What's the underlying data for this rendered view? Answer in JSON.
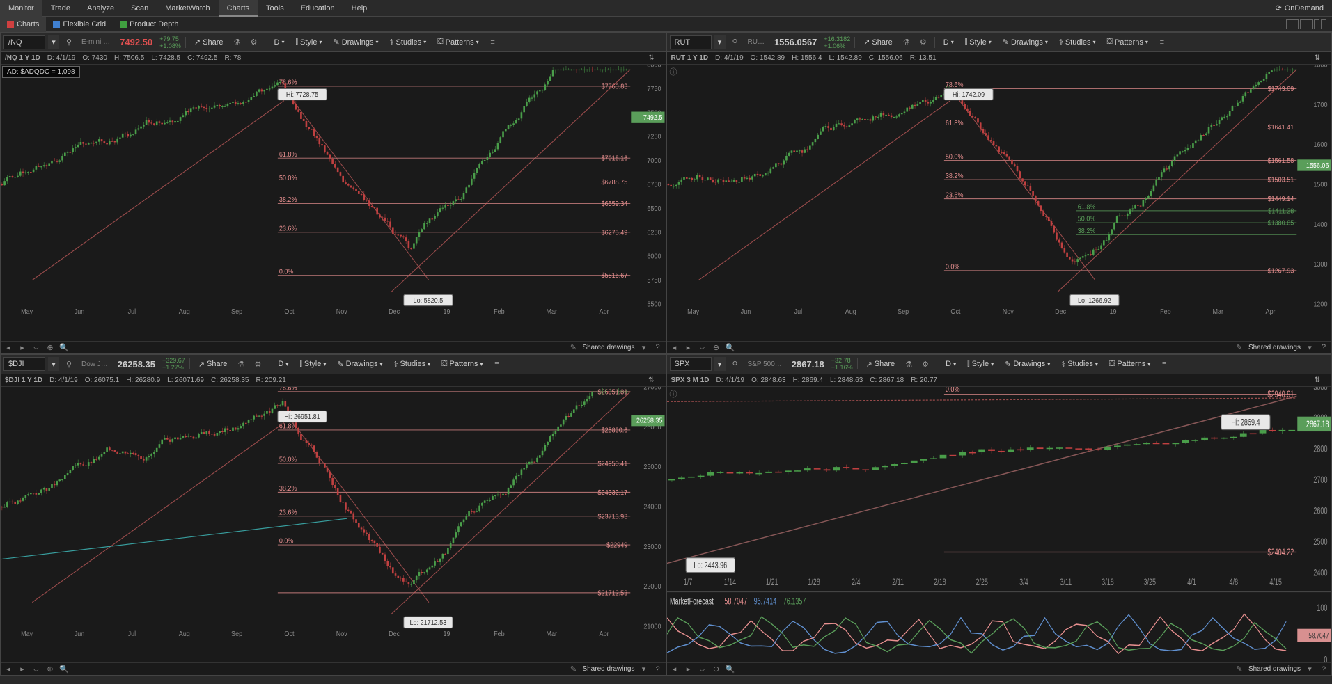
{
  "top_menu": {
    "items": [
      "Monitor",
      "Trade",
      "Analyze",
      "Scan",
      "MarketWatch",
      "Charts",
      "Tools",
      "Education",
      "Help"
    ],
    "active": 5,
    "ondemand": "OnDemand"
  },
  "sub_menu": {
    "items": [
      {
        "icon": "chart",
        "label": "Charts",
        "active": true,
        "color": "#d04040"
      },
      {
        "icon": "grid",
        "label": "Flexible Grid",
        "active": false,
        "color": "#4080d0"
      },
      {
        "icon": "depth",
        "label": "Product Depth",
        "active": false,
        "color": "#40a040"
      }
    ]
  },
  "panels": [
    {
      "symbol": "/NQ",
      "desc": "E-mini …",
      "price": "7492.50",
      "price_color": "#e05050",
      "change1": "+79.75",
      "change2": "+1.08%",
      "change_color": "#5a9e5a",
      "timeframe": "D",
      "info_title": "/NQ 1 Y 1D",
      "info_d": "4/1/19",
      "info_o": "7430",
      "info_h": "7506.5",
      "info_l": "7428.5",
      "info_c": "7492.5",
      "info_r": "78",
      "ad_text": "AD: $ADQDC = 1,098",
      "y_axis": {
        "min": 5500,
        "max": 8000,
        "ticks": [
          5500,
          5750,
          6000,
          6250,
          6500,
          6750,
          7000,
          7250,
          7500,
          7750,
          8000
        ]
      },
      "x_labels": [
        "May",
        "Jun",
        "Jul",
        "Aug",
        "Sep",
        "Oct",
        "Nov",
        "Dec",
        "19",
        "Feb",
        "Mar",
        "Apr"
      ],
      "current_price": "7492.5",
      "fib_levels": [
        {
          "pct": "78.6%",
          "price": "$7760.83",
          "y": 0.09
        },
        {
          "pct": "61.8%",
          "price": "$7018.16",
          "y": 0.39
        },
        {
          "pct": "50.0%",
          "price": "$6788.75",
          "y": 0.49
        },
        {
          "pct": "38.2%",
          "price": "$6559.34",
          "y": 0.58
        },
        {
          "pct": "23.6%",
          "price": "$6275.49",
          "y": 0.7
        },
        {
          "pct": "0.0%",
          "price": "$5816.67",
          "y": 0.88
        }
      ],
      "hi_label": "Hi: 7728.75",
      "lo_label": "Lo: 5820.5",
      "shared": "Shared drawings"
    },
    {
      "symbol": "RUT",
      "desc": "RU…",
      "price": "1556.0567",
      "price_color": "#cccccc",
      "change1": "+16.3182",
      "change2": "+1.06%",
      "change_color": "#5a9e5a",
      "timeframe": "D",
      "info_title": "RUT 1 Y 1D",
      "info_d": "4/1/19",
      "info_o": "1542.89",
      "info_h": "1556.4",
      "info_l": "1542.89",
      "info_c": "1556.06",
      "info_r": "13.51",
      "y_axis": {
        "min": 1200,
        "max": 1800,
        "ticks": [
          1200,
          1300,
          1400,
          1500,
          1600,
          1700,
          1800
        ]
      },
      "x_labels": [
        "May",
        "Jun",
        "Jul",
        "Aug",
        "Sep",
        "Oct",
        "Nov",
        "Dec",
        "19",
        "Feb",
        "Mar",
        "Apr"
      ],
      "current_price": "1556.06",
      "fib_levels": [
        {
          "pct": "78.6%",
          "price": "$1743.09",
          "y": 0.1,
          "color": "#e89090"
        },
        {
          "pct": "61.8%",
          "price": "$1641.41",
          "y": 0.26,
          "color": "#e89090"
        },
        {
          "pct": "50.0%",
          "price": "$1561.58",
          "y": 0.4,
          "color": "#e89090"
        },
        {
          "pct": "38.2%",
          "price": "$1503.51",
          "y": 0.48,
          "color": "#e89090"
        },
        {
          "pct": "23.6%",
          "price": "$1449.14",
          "y": 0.56,
          "color": "#e89090"
        },
        {
          "pct": "0.0%",
          "price": "$1267.93",
          "y": 0.86,
          "color": "#e89090"
        }
      ],
      "fib_levels2": [
        {
          "pct": "61.8%",
          "price": "$1411.28",
          "y": 0.61,
          "color": "#5a9e5a"
        },
        {
          "pct": "50.0%",
          "price": "$1380.85",
          "y": 0.66,
          "color": "#5a9e5a"
        },
        {
          "pct": "38.2%",
          "price": "",
          "y": 0.71,
          "color": "#5a9e5a"
        }
      ],
      "hi_label": "Hi: 1742.09",
      "lo_label": "Lo: 1266.92",
      "shared": "Shared drawings"
    },
    {
      "symbol": "$DJI",
      "desc": "Dow J…",
      "price": "26258.35",
      "price_color": "#cccccc",
      "change1": "+329.67",
      "change2": "+1.27%",
      "change_color": "#5a9e5a",
      "timeframe": "D",
      "info_title": "$DJI 1 Y 1D",
      "info_d": "4/1/19",
      "info_o": "26075.1",
      "info_h": "26280.9",
      "info_l": "26071.69",
      "info_c": "26258.35",
      "info_r": "209.21",
      "y_axis": {
        "min": 21000,
        "max": 27000,
        "ticks": [
          21000,
          22000,
          23000,
          24000,
          25000,
          26000,
          27000
        ]
      },
      "x_labels": [
        "May",
        "Jun",
        "Jul",
        "Aug",
        "Sep",
        "Oct",
        "Nov",
        "Dec",
        "19",
        "Feb",
        "Mar",
        "Apr"
      ],
      "current_price": "26258.35",
      "fib_levels": [
        {
          "pct": "78.6%",
          "price": "$26951.81",
          "y": 0.02
        },
        {
          "pct": "61.8%",
          "price": "$25830.6",
          "y": 0.18
        },
        {
          "pct": "50.0%",
          "price": "$24950.41",
          "y": 0.32
        },
        {
          "pct": "38.2%",
          "price": "$24332.17",
          "y": 0.44
        },
        {
          "pct": "23.6%",
          "price": "$23713.93",
          "y": 0.54
        },
        {
          "pct": "0.0%",
          "price": "$22949",
          "y": 0.66
        },
        {
          "pct": "",
          "price": "$21712.53",
          "y": 0.86
        }
      ],
      "hi_label": "Hi: 26951.81",
      "lo_label": "Lo: 21712.53",
      "shared": "Shared drawings"
    },
    {
      "symbol": "SPX",
      "desc": "S&P 500…",
      "price": "2867.18",
      "price_color": "#cccccc",
      "change1": "+32.78",
      "change2": "+1.16%",
      "change_color": "#5a9e5a",
      "timeframe": "D",
      "info_title": "SPX 3 M 1D",
      "info_d": "4/1/19",
      "info_o": "2848.63",
      "info_h": "2869.4",
      "info_l": "2848.63",
      "info_c": "2867.18",
      "info_r": "20.77",
      "y_axis": {
        "min": 2400,
        "max": 3000,
        "ticks": [
          2400,
          2500,
          2600,
          2700,
          2800,
          2900,
          3000
        ]
      },
      "x_labels": [
        "1/7",
        "1/14",
        "1/21",
        "1/28",
        "2/4",
        "2/11",
        "2/18",
        "2/25",
        "3/4",
        "3/11",
        "3/18",
        "3/25",
        "4/1",
        "4/8",
        "4/15"
      ],
      "current_price": "2867.18",
      "fib_levels": [
        {
          "pct": "0.0%",
          "price": "$2940.91",
          "y": 0.04
        },
        {
          "pct": "",
          "price": "$2404.22",
          "y": 0.89
        }
      ],
      "hi_label": "Hi: 2869.4",
      "lo_label": "Lo: 2443.96",
      "shared": "Shared drawings",
      "indicator": {
        "name": "MarketForecast",
        "v1": "58.7047",
        "v2": "96.7414",
        "v3": "76.1357",
        "c1": "#e89090",
        "c2": "#6090d0",
        "c3": "#5a9e5a",
        "tag": "58.7047"
      },
      "ind_axis": [
        0,
        50,
        100
      ]
    }
  ],
  "toolbar_labels": {
    "share": "Share",
    "style": "Style",
    "drawings": "Drawings",
    "studies": "Studies",
    "patterns": "Patterns"
  }
}
